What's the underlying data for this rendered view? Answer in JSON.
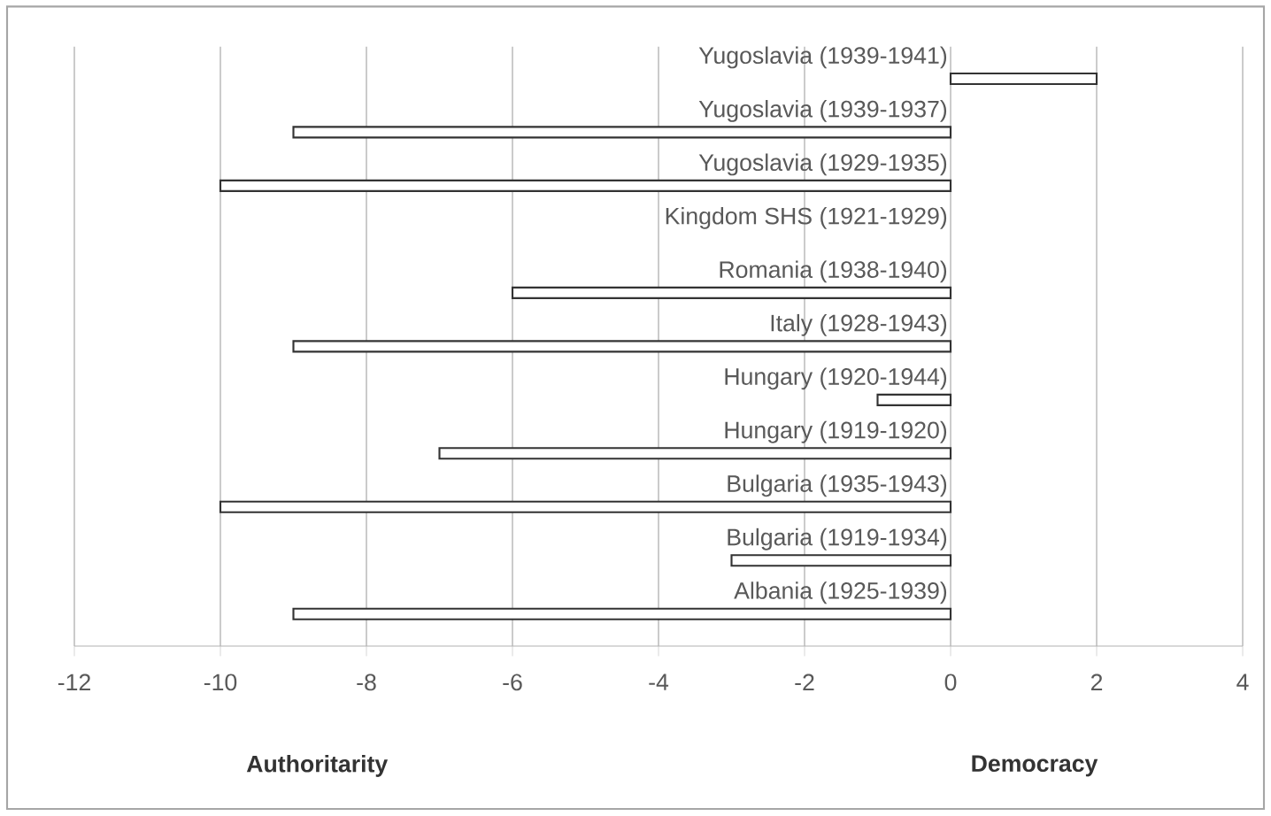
{
  "chart_data": {
    "type": "bar",
    "orientation": "horizontal",
    "categories": [
      "Yugoslavia (1939-1941)",
      "Yugoslavia (1939-1937)",
      "Yugoslavia (1929-1935)",
      "Kingdom SHS (1921-1929)",
      "Romania (1938-1940)",
      "Italy (1928-1943)",
      "Hungary (1920-1944)",
      "Hungary (1919-1920)",
      "Bulgaria (1935-1943)",
      "Bulgaria (1919-1934)",
      "Albania (1925-1939)"
    ],
    "values": [
      2,
      -9,
      -10,
      null,
      -6,
      -9,
      -1,
      -7,
      -10,
      -3,
      -9
    ],
    "color": "#ffffff",
    "xlim": [
      -12,
      4
    ],
    "xticks": [
      -12,
      -10,
      -8,
      -6,
      -4,
      -2,
      0,
      2,
      4
    ],
    "grid": "x",
    "annotations": [
      "Authoritarity",
      "Democracy"
    ]
  }
}
